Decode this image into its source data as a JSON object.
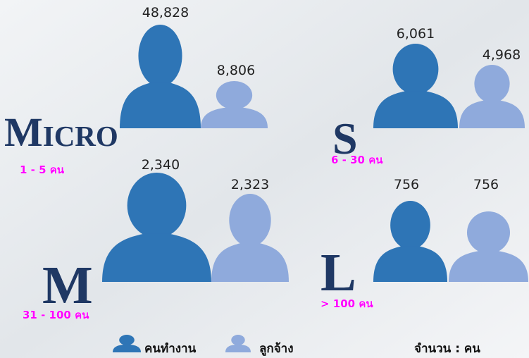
{
  "groups": [
    {
      "name": "Micro",
      "range": "1 - 5 คน",
      "workers": "48,828",
      "employees": "8,806"
    },
    {
      "name": "S",
      "range": "6 - 30 คน",
      "workers": "6,061",
      "employees": "4,968"
    },
    {
      "name": "M",
      "range": "31 - 100 คน",
      "workers": "2,340",
      "employees": "2,323"
    },
    {
      "name": "L",
      "range": "> 100 คน",
      "workers": "756",
      "employees": "756"
    }
  ],
  "legend": {
    "workers": "คนทำงาน",
    "employees": "ลูกจ้าง"
  },
  "unit_note": "จำนวน : คน"
}
